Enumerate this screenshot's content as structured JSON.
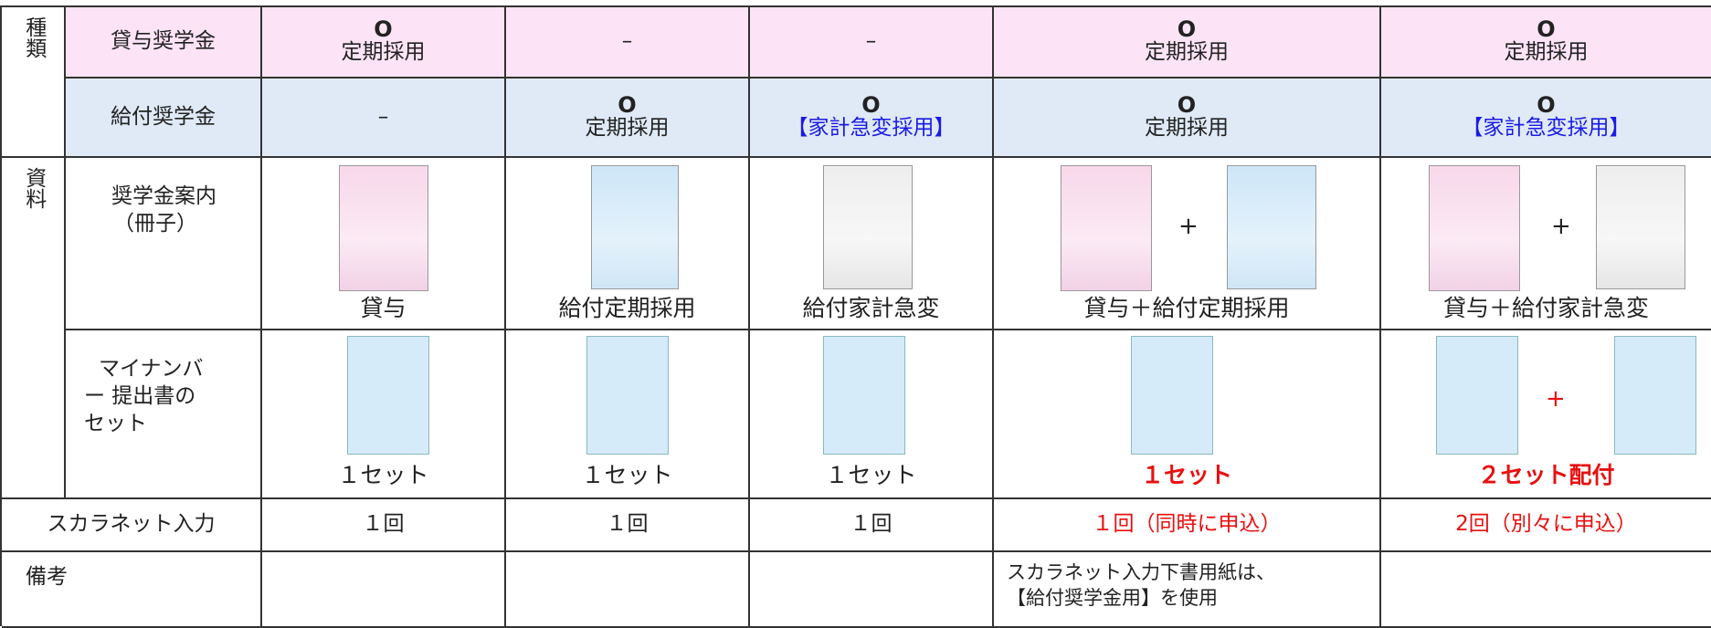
{
  "table": {
    "group_labels": {
      "type": "種類",
      "materials": "資料"
    },
    "lending": {
      "label": "貸与奨学金",
      "cells": [
        {
          "mark": "O",
          "text": "定期採用"
        },
        {
          "text": "–"
        },
        {
          "text": "–"
        },
        {
          "mark": "O",
          "text": "定期採用"
        },
        {
          "mark": "O",
          "text": "定期採用"
        }
      ]
    },
    "grant": {
      "label": "給付奨学金",
      "cells": [
        {
          "text": "–"
        },
        {
          "mark": "O",
          "text": "定期採用"
        },
        {
          "mark": "O",
          "text": "【家計急変採用】"
        },
        {
          "mark": "O",
          "text": "定期採用"
        },
        {
          "mark": "O",
          "text": "【家計急変採用】"
        }
      ]
    },
    "booklet": {
      "label_lines": [
        "奨学金案内",
        "（冊子）"
      ],
      "captions": [
        "貸与",
        "給付定期採用",
        "給付家計急変",
        "貸与＋給付定期採用",
        "貸与＋給付家計急変"
      ],
      "plus": "+"
    },
    "mynumber": {
      "label_lines": [
        "マイナンバ",
        "ー 提出書の",
        "セット"
      ],
      "captions": [
        "１セット",
        "１セット",
        "１セット",
        "１セット",
        "２セット配付"
      ],
      "plus": "+"
    },
    "scalanet": {
      "label": "スカラネット入力",
      "cells": [
        "１回",
        "１回",
        "１回",
        "１回（同時に申込）",
        "2回（別々に申込）"
      ]
    },
    "remarks": {
      "label": "備考",
      "note_lines": [
        "スカラネット入力下書用紙は、",
        "【給付奨学金用】を使用"
      ]
    }
  }
}
